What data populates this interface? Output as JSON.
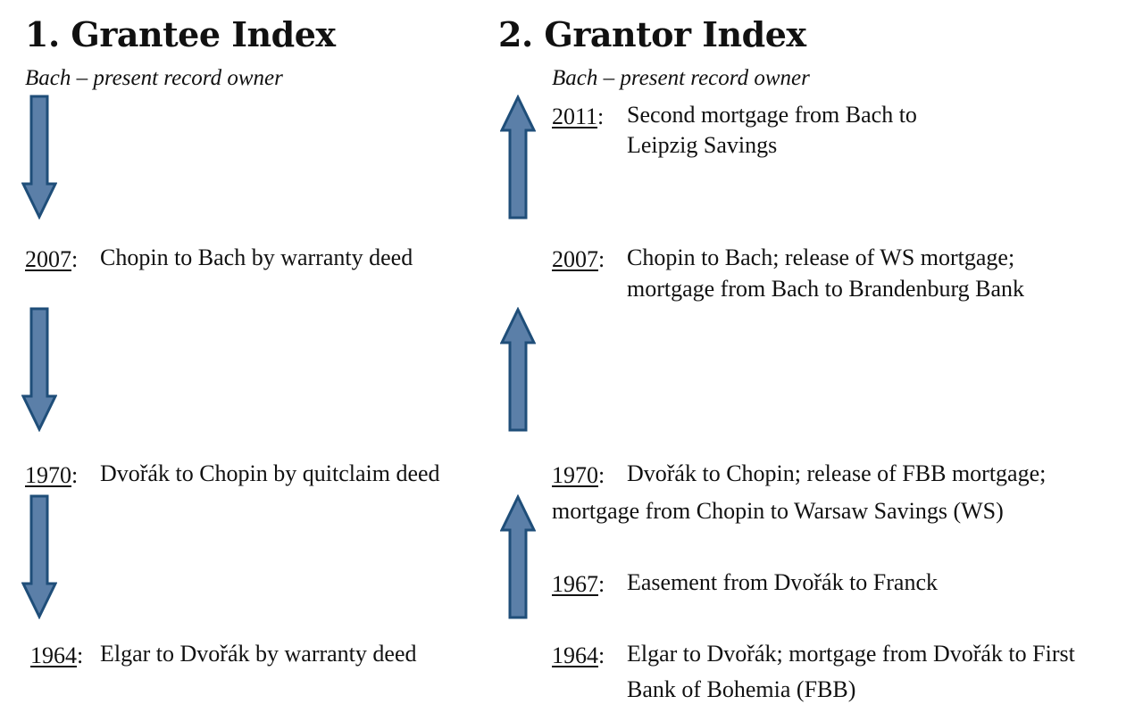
{
  "grantee": {
    "heading": "1. Grantee Index",
    "subheading": "Bach – present record owner",
    "entries": [
      {
        "year": "2007",
        "text": "Chopin to Bach by warranty deed"
      },
      {
        "year": "1970",
        "text": "Dvořák to Chopin by quitclaim  deed"
      },
      {
        "year": "1964",
        "text": "Elgar to Dvořák by warranty deed"
      }
    ],
    "arrow_direction": "down"
  },
  "grantor": {
    "heading": "2. Grantor Index",
    "subheading": "Bach – present record owner",
    "entries": [
      {
        "year": "2011",
        "line1": "Second mortgage from Bach to",
        "line2": "Leipzig Savings"
      },
      {
        "year": "2007",
        "line1": "Chopin to Bach; release of WS mortgage;",
        "line2": "mortgage from Bach to Brandenburg Bank"
      },
      {
        "year": "1970",
        "line1": "Dvořák  to Chopin;  release of FBB mortgage;",
        "line2": "mortgage from Chopin  to Warsaw Savings (WS)"
      },
      {
        "year": "1967",
        "line1": "Easement from Dvořák to Franck"
      },
      {
        "year": "1964",
        "line1": "Elgar to Dvořák; mortgage from Dvořák to First",
        "line2": "Bank of Bohemia (FBB)"
      }
    ],
    "arrow_direction": "up"
  },
  "colors": {
    "arrow_fill": "#5b7fa8",
    "arrow_stroke": "#1f4e79"
  },
  "icons": [
    "arrow-down-icon",
    "arrow-up-icon"
  ]
}
